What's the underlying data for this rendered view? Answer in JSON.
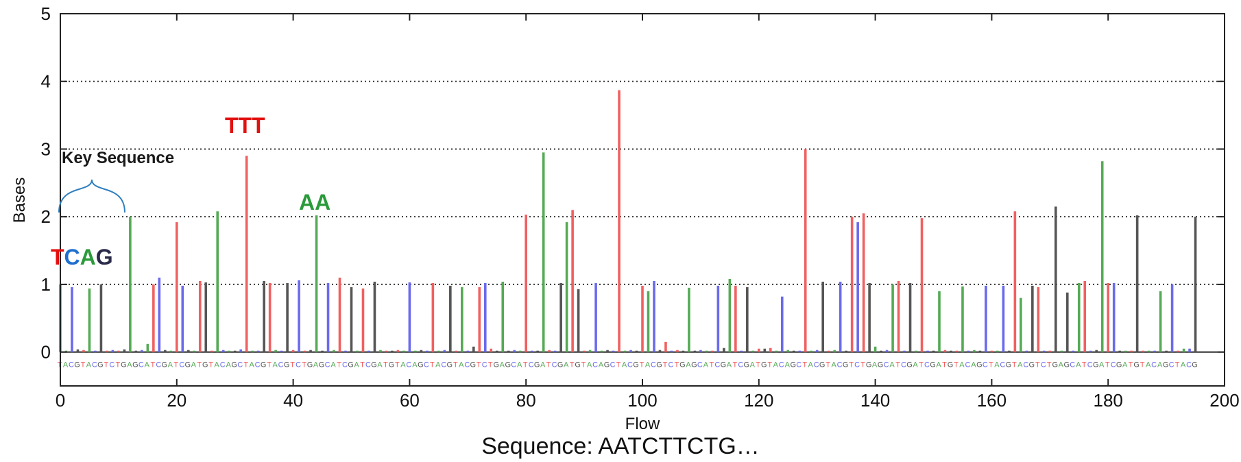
{
  "chart_data": {
    "type": "bar",
    "xlabel": "Flow",
    "ylabel": "Bases",
    "xlim": [
      0,
      200
    ],
    "ylim": [
      -0.5,
      5
    ],
    "xticks": [
      "0",
      "20",
      "40",
      "60",
      "80",
      "100",
      "120",
      "140",
      "160",
      "180",
      "200"
    ],
    "yticks": [
      "0",
      "1",
      "2",
      "3",
      "4",
      "5"
    ],
    "grid": "horizontal dotted",
    "flow_order_repeat": "TACGTACGTCTGAGCATCGATCGATGTACAGC",
    "base_colors": {
      "T": "#f06060",
      "A": "#55aa55",
      "C": "#6a6aee",
      "G": "#555555"
    },
    "values": [
      1.0,
      0.02,
      0.96,
      0.04,
      0.03,
      0.94,
      0.02,
      1.0,
      0.02,
      0.03,
      0.02,
      0.04,
      2.0,
      0.02,
      0.03,
      0.12,
      1.0,
      1.1,
      0.03,
      0.02,
      1.92,
      0.98,
      0.03,
      0.02,
      1.05,
      1.03,
      0.02,
      2.08,
      0.03,
      0.02,
      0.02,
      0.04,
      2.9,
      0.02,
      0.02,
      1.05,
      1.02,
      0.03,
      0.02,
      1.02,
      0.03,
      1.06,
      0.02,
      0.03,
      2.02,
      0.02,
      1.02,
      0.03,
      1.1,
      0.02,
      0.96,
      0.02,
      0.94,
      0.02,
      1.04,
      0.03,
      0.02,
      0.02,
      0.03,
      0.02,
      1.03,
      0.02,
      0.03,
      0.02,
      1.02,
      0.02,
      0.03,
      0.98,
      0.02,
      0.96,
      0.02,
      0.08,
      0.96,
      1.02,
      0.05,
      0.02,
      1.04,
      0.02,
      0.03,
      0.02,
      2.03,
      0.02,
      0.02,
      2.95,
      0.03,
      0.02,
      1.02,
      1.92,
      2.1,
      0.93,
      0.02,
      0.03,
      1.02,
      0.02,
      0.03,
      0.02,
      3.87,
      0.02,
      0.03,
      0.02,
      0.98,
      0.9,
      1.05,
      0.03,
      0.15,
      0.02,
      0.03,
      0.02,
      0.95,
      0.02,
      0.03,
      0.02,
      0.02,
      0.98,
      0.06,
      1.08,
      0.98,
      0.02,
      0.96,
      0.02,
      0.05,
      0.05,
      0.06,
      0.02,
      0.82,
      0.03,
      0.02,
      0.02,
      3.0,
      0.02,
      0.03,
      1.04,
      0.02,
      0.03,
      1.04,
      0.02,
      2.0,
      1.92,
      2.05,
      1.02,
      0.08,
      0.02,
      0.03,
      1.0,
      1.05,
      0.02,
      1.02,
      0.02,
      1.98,
      0.02,
      0.02,
      0.9,
      0.03,
      0.02,
      0.02,
      0.97,
      0.02,
      0.03,
      0.02,
      0.98,
      0.02,
      0.02,
      0.98,
      0.02,
      2.08,
      0.8,
      0.02,
      0.98,
      0.96,
      0.02,
      0.02,
      2.15,
      0.02,
      0.88,
      0.02,
      1.02,
      1.05,
      0.02,
      0.03,
      2.82,
      1.02,
      1.02,
      0.02,
      0.02,
      0.02,
      2.02,
      0.02,
      0.02,
      0.02,
      0.9,
      0.02,
      1.0,
      0.02,
      0.05,
      0.05,
      2.0
    ]
  },
  "annotations": {
    "key_label": "Key Sequence",
    "key_bases": [
      {
        "text": "T",
        "color": "#e31010"
      },
      {
        "text": "C",
        "color": "#1f6fcf"
      },
      {
        "text": "A",
        "color": "#2a9a3a"
      },
      {
        "text": "G",
        "color": "#2a2a4a"
      }
    ],
    "ttt_label": "TTT",
    "ttt_color": "#e31010",
    "aa_label": "AA",
    "aa_color": "#2a9a3a",
    "brace_color": "#2f7fbf"
  },
  "caption": "Sequence: AATCTTCTG…"
}
